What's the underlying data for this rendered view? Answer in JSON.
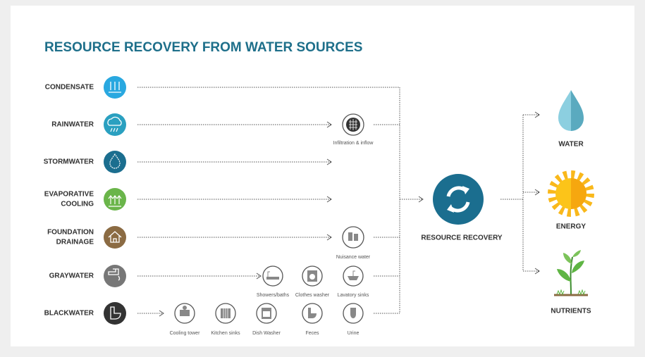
{
  "header": {
    "title": "RESOURCE RECOVERY FROM WATER SOURCES"
  },
  "sources": [
    [
      "CONDENSATE"
    ],
    [
      "RAINWATER"
    ],
    [
      "STORMWATER"
    ],
    [
      "EVAPORATIVE",
      "COOLING"
    ],
    [
      "FOUNDATION",
      "DRAINAGE"
    ],
    [
      "GRAYWATER"
    ],
    [
      "BLACKWATER"
    ]
  ],
  "fixtures": [
    "Infiltration & inflow",
    "Nuisance water",
    "Showers/baths",
    "Clothes washer",
    "Lavatory sinks",
    "Cooling tower",
    "Kitchen sinks",
    "Dish Washer",
    "Feces",
    "Urine"
  ],
  "hub": {
    "label": "RESOURCE RECOVERY"
  },
  "outputs": [
    "WATER",
    "ENERGY",
    "NUTRIENTS"
  ]
}
